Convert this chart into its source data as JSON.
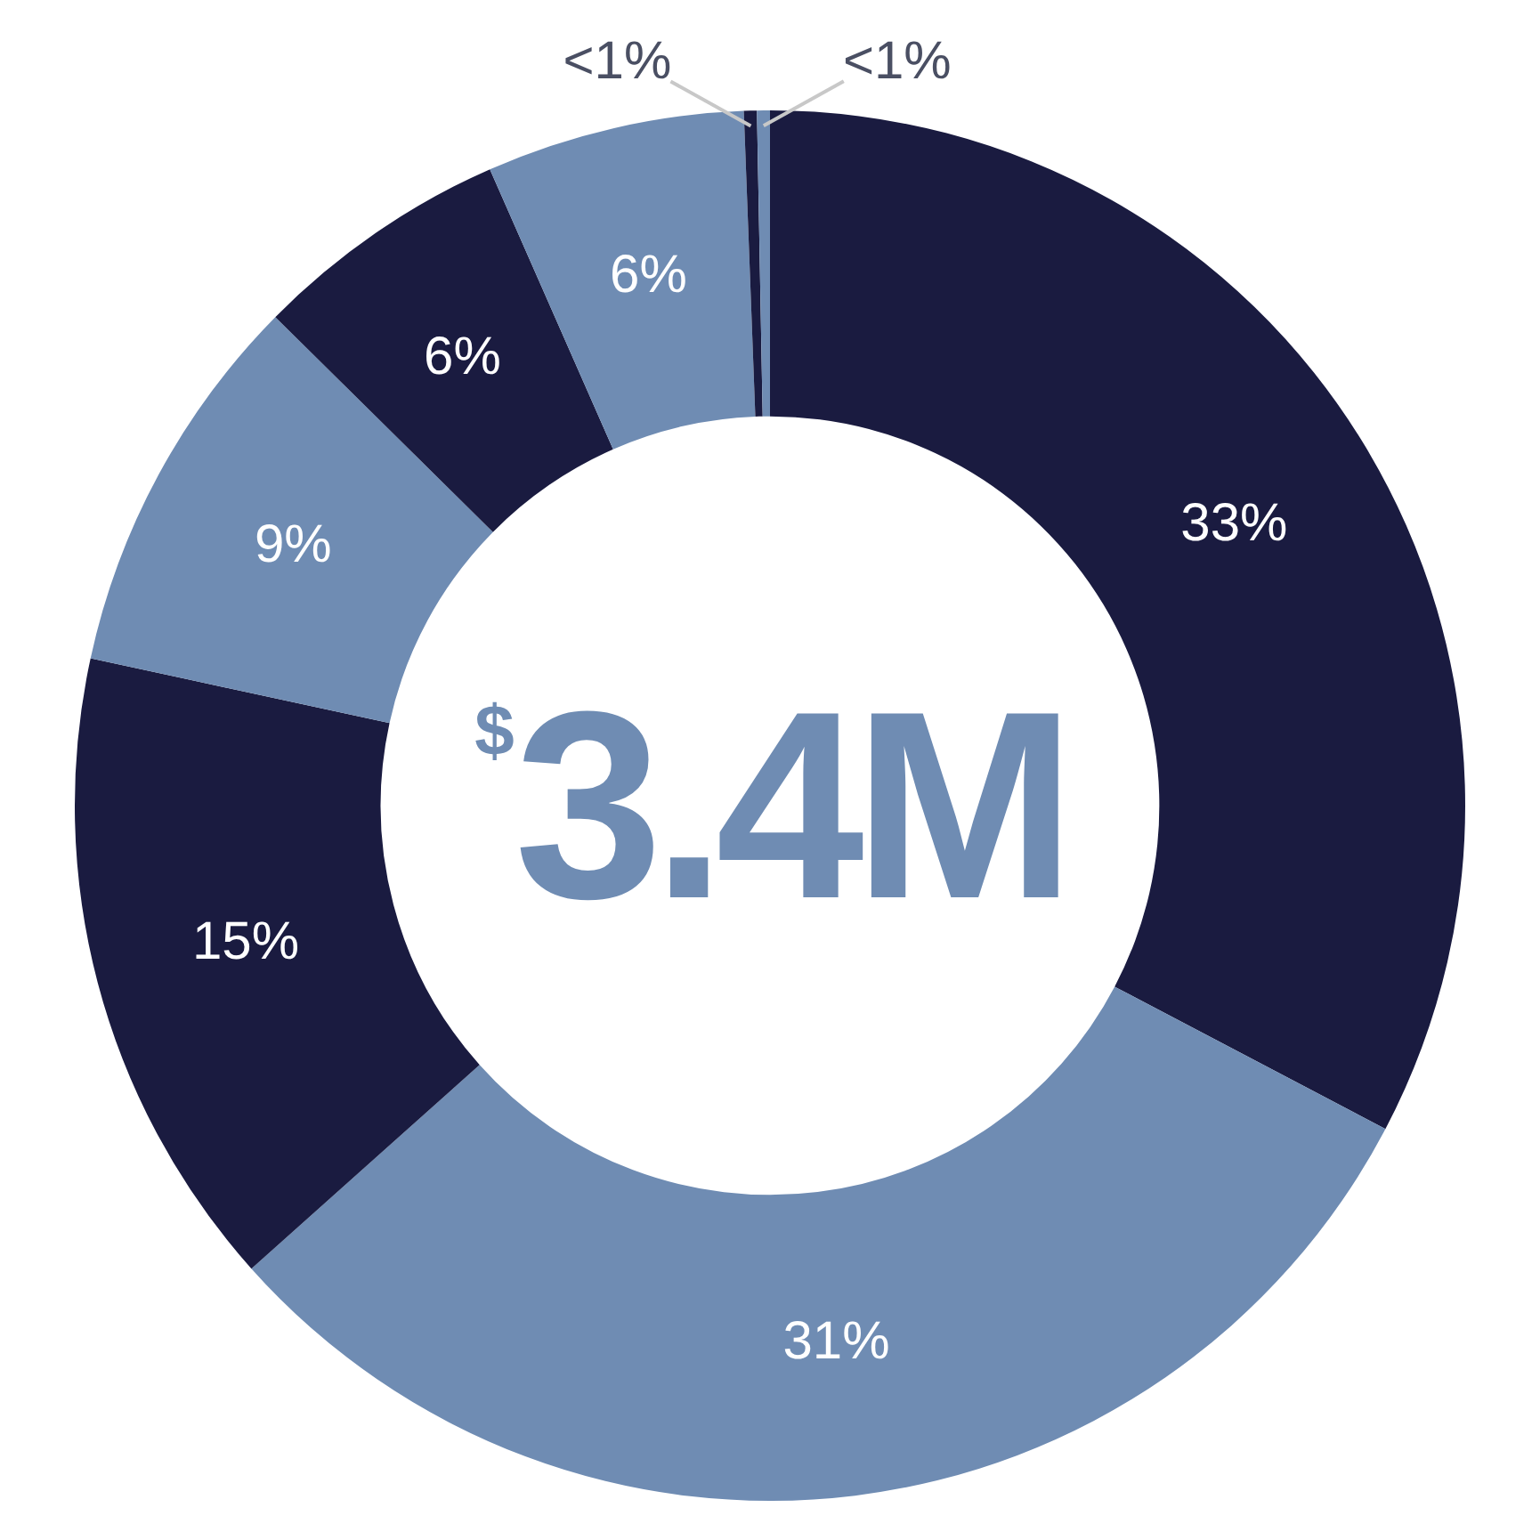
{
  "chart_data": {
    "type": "donut",
    "categories": [
      null,
      null,
      null,
      null,
      null,
      null,
      null,
      null
    ],
    "values": [
      32.7,
      30.7,
      15,
      9,
      6,
      6,
      0.3,
      0.3
    ],
    "colors": [
      "#1a1b40",
      "#6f8cb3",
      "#1a1b40",
      "#6f8cb3",
      "#1a1b40",
      "#6f8cb3",
      "#1a1b40",
      "#6f8cb3"
    ],
    "value_labels": [
      "33%",
      "31%",
      "15%",
      "9%",
      "6%",
      "6%",
      "<1%",
      "<1%"
    ],
    "annotations": [
      "$3.4M"
    ],
    "legend": false
  }
}
